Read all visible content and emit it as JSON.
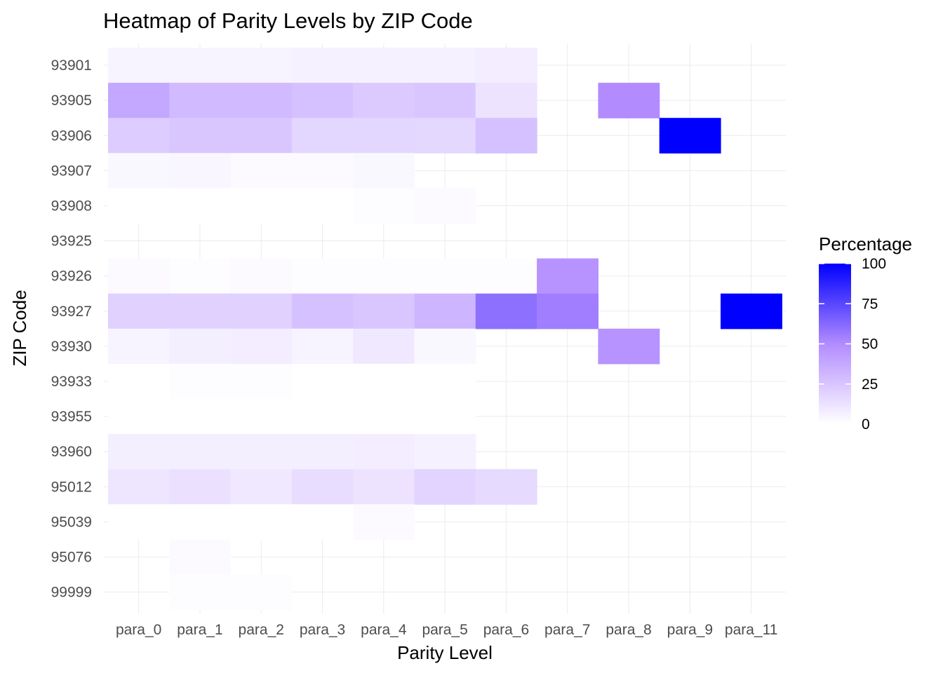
{
  "chart_data": {
    "type": "heatmap",
    "title": "Heatmap of Parity Levels by ZIP Code",
    "xlabel": "Parity Level",
    "ylabel": "ZIP Code",
    "x_categories": [
      "para_0",
      "para_1",
      "para_2",
      "para_3",
      "para_4",
      "para_5",
      "para_6",
      "para_7",
      "para_8",
      "para_9",
      "para_11"
    ],
    "y_categories": [
      "93901",
      "93905",
      "93906",
      "93907",
      "93908",
      "93925",
      "93926",
      "93927",
      "93930",
      "93933",
      "93955",
      "93960",
      "95012",
      "95039",
      "95076",
      "99999"
    ],
    "values": [
      [
        5,
        5,
        5,
        6,
        6,
        6,
        8,
        null,
        null,
        null,
        null
      ],
      [
        38,
        30,
        30,
        27,
        23,
        25,
        12,
        null,
        50,
        null,
        null
      ],
      [
        22,
        25,
        25,
        18,
        18,
        17,
        27,
        null,
        null,
        100,
        null
      ],
      [
        3,
        4,
        2,
        2,
        3,
        null,
        null,
        null,
        null,
        null,
        null
      ],
      [
        0,
        0,
        0,
        0,
        1,
        2,
        null,
        null,
        null,
        null,
        null
      ],
      [
        null,
        null,
        null,
        null,
        null,
        null,
        null,
        null,
        null,
        null,
        null
      ],
      [
        2,
        1,
        2,
        1,
        1,
        1,
        1,
        47,
        null,
        null,
        null
      ],
      [
        20,
        20,
        20,
        27,
        25,
        32,
        60,
        55,
        null,
        null,
        100
      ],
      [
        5,
        7,
        8,
        5,
        10,
        3,
        null,
        null,
        47,
        null,
        null
      ],
      [
        0,
        1,
        1,
        0,
        0,
        0,
        null,
        null,
        null,
        null,
        null
      ],
      [
        0,
        0,
        0,
        0,
        0,
        0,
        null,
        null,
        null,
        null,
        null
      ],
      [
        7,
        7,
        7,
        7,
        8,
        6,
        null,
        null,
        null,
        null,
        null
      ],
      [
        11,
        13,
        10,
        15,
        12,
        19,
        16,
        null,
        null,
        null,
        null
      ],
      [
        0,
        0,
        0,
        0,
        2,
        null,
        null,
        null,
        null,
        null,
        null
      ],
      [
        null,
        2,
        null,
        null,
        null,
        null,
        null,
        null,
        null,
        null,
        null
      ],
      [
        null,
        1,
        1,
        null,
        null,
        null,
        null,
        null,
        null,
        null,
        null
      ]
    ],
    "legend": {
      "title": "Percentage",
      "placement": "right",
      "ticks": [
        0,
        25,
        50,
        75,
        100
      ],
      "low_color": "#ffffff",
      "high_color": "#0000ff",
      "range": [
        0,
        100
      ]
    },
    "grid": true
  }
}
